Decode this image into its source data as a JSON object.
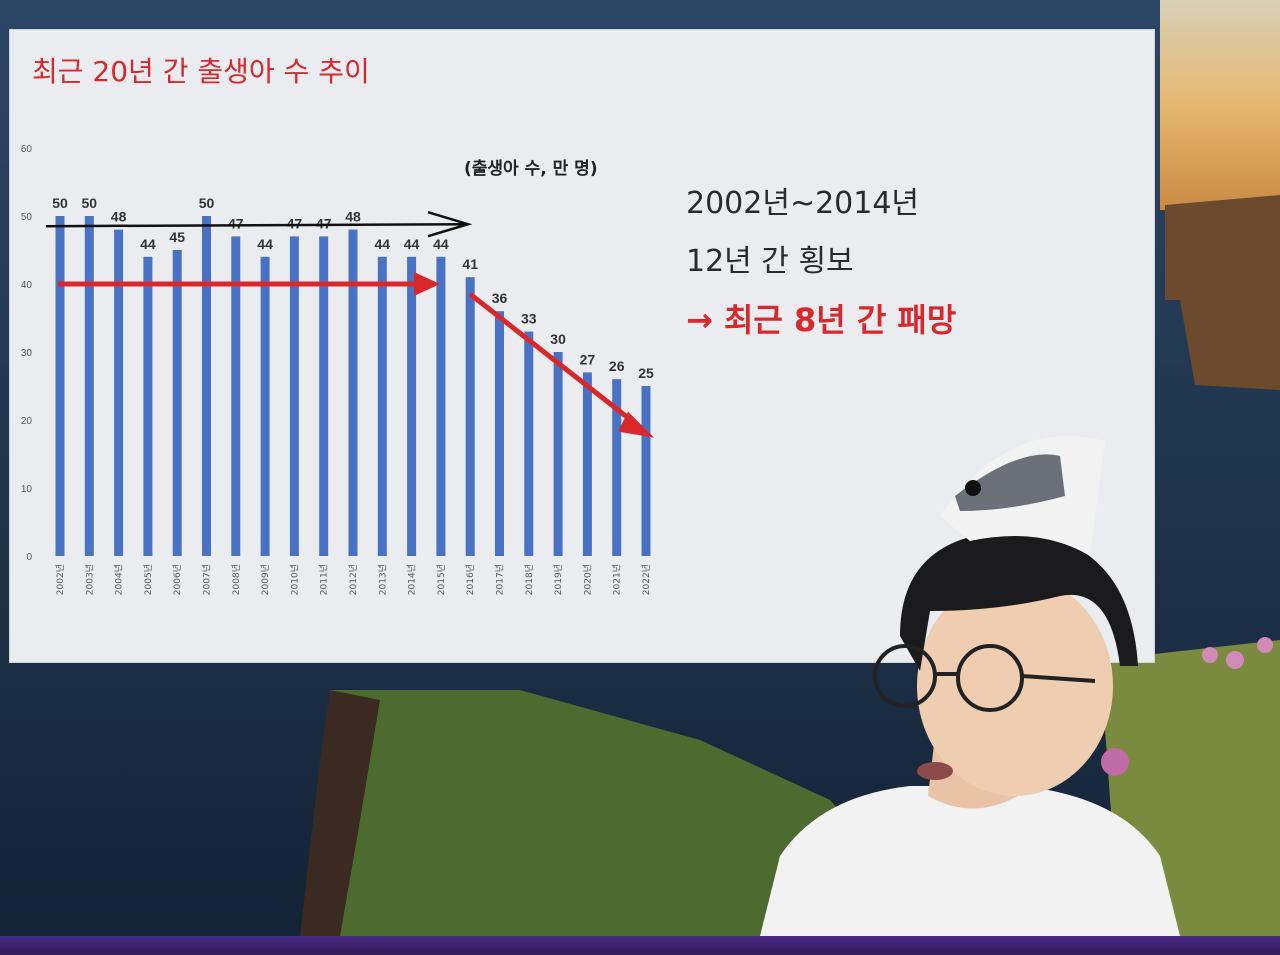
{
  "slide": {
    "title": "최근 20년 간 출생아 수 추이",
    "unit_note": "(출생아 수, 만 명)",
    "notes": {
      "period": "2002년~2014년",
      "flat": "12년 간 횡보",
      "emphasis": "→ 최근 8년 간 패망"
    }
  },
  "chart_data": {
    "type": "bar",
    "categories": [
      "2002년",
      "2003년",
      "2004년",
      "2005년",
      "2006년",
      "2007년",
      "2008년",
      "2009년",
      "2010년",
      "2011년",
      "2012년",
      "2013년",
      "2014년",
      "2015년",
      "2016년",
      "2017년",
      "2018년",
      "2019년",
      "2020년",
      "2021년",
      "2022년"
    ],
    "values": [
      50,
      50,
      48,
      44,
      45,
      50,
      47,
      44,
      47,
      47,
      48,
      44,
      44,
      44,
      41,
      36,
      33,
      30,
      27,
      26,
      25
    ],
    "ylim": [
      0,
      60
    ],
    "yticks": [
      0,
      10,
      20,
      30,
      40,
      50,
      60
    ],
    "bar_color": "#4a72c4",
    "annotation_color": "#d9282c"
  },
  "colors": {
    "accent": "#d9282c",
    "text": "#2a2a2a"
  }
}
